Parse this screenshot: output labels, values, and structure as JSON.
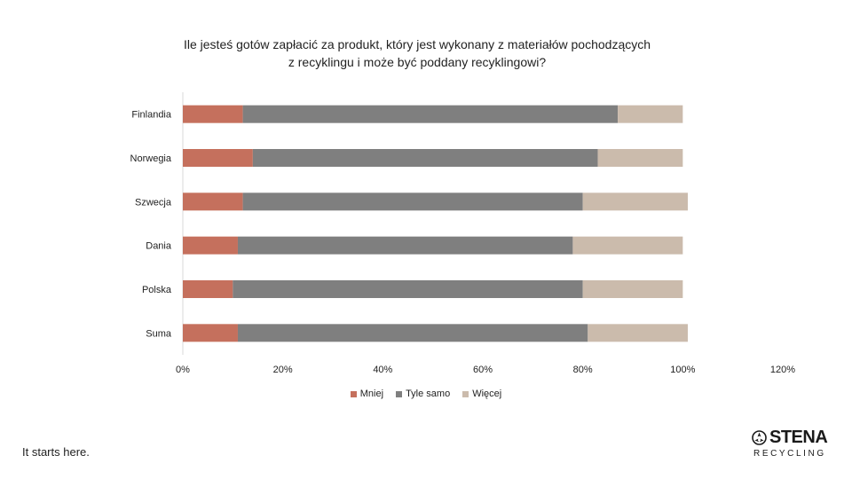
{
  "title": {
    "line1": "Ile jesteś gotów zapłacić za produkt, który jest wykonany z materiałów pochodzących",
    "line2": "z recyklingu i może być poddany recyklingowi?"
  },
  "chart_data": {
    "type": "bar",
    "orientation": "horizontal",
    "stacked": true,
    "categories": [
      "Finlandia",
      "Norwegia",
      "Szwecja",
      "Dania",
      "Polska",
      "Suma"
    ],
    "series": [
      {
        "name": "Mniej",
        "color": "#c5705d",
        "values": [
          12,
          14,
          12,
          11,
          10,
          11
        ]
      },
      {
        "name": "Tyle samo",
        "color": "#7f7f7f",
        "values": [
          75,
          69,
          68,
          67,
          70,
          70
        ]
      },
      {
        "name": "Więcej",
        "color": "#cbbbac",
        "values": [
          13,
          17,
          21,
          22,
          20,
          20
        ]
      }
    ],
    "xlim": [
      0,
      120
    ],
    "x_tick_labels": [
      "0%",
      "20%",
      "40%",
      "60%",
      "80%",
      "100%",
      "120%"
    ],
    "grid": false,
    "legend_position": "bottom"
  },
  "footer": {
    "tagline": "It starts here."
  },
  "logo": {
    "wordmark": "STENA",
    "subtitle": "RECYCLING"
  }
}
